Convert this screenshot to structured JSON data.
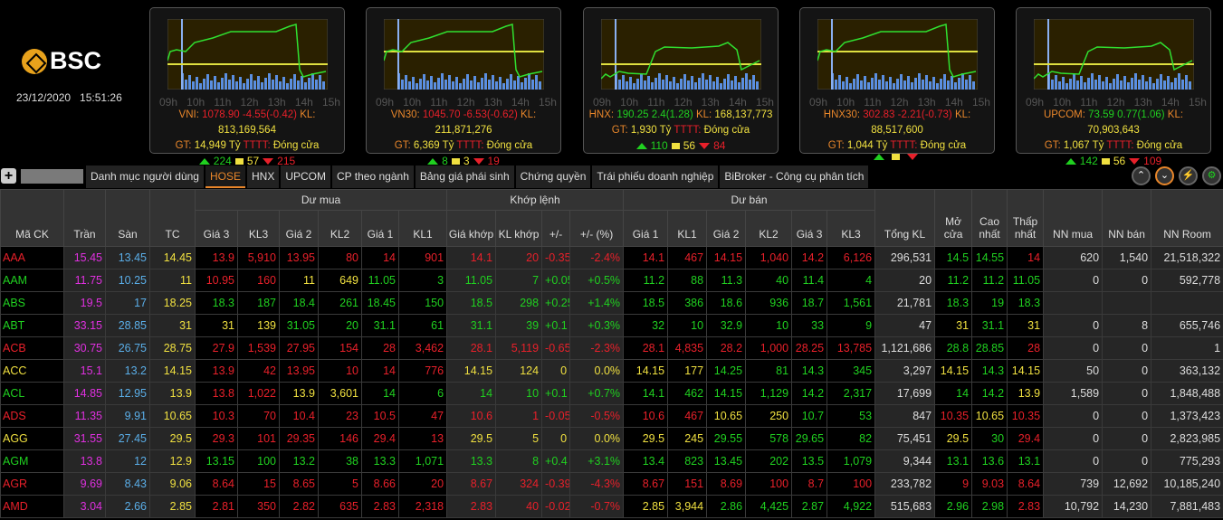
{
  "brand": "BSC",
  "datetime": "23/12/2020   15:51:26",
  "hours": [
    "09h",
    "10h",
    "11h",
    "12h",
    "13h",
    "14h",
    "15h"
  ],
  "indices": [
    {
      "name": "VNI:",
      "value": "1078.90",
      "change": "-4.55(-0.42)",
      "kl_label": "KL:",
      "kl": "813,169,564",
      "gt_label": "GT:",
      "gt": "14,949 Tỷ",
      "tttt_label": "TTTT:",
      "status": "Đóng cửa",
      "up": "224",
      "flat": "57",
      "down": "215",
      "trend": "down"
    },
    {
      "name": "VN30:",
      "value": "1045.70",
      "change": "-6.53(-0.62)",
      "kl_label": "KL:",
      "kl": "211,871,276",
      "gt_label": "GT:",
      "gt": "6,369 Tỷ",
      "tttt_label": "TTTT:",
      "status": "Đóng cửa",
      "up": "8",
      "flat": "3",
      "down": "19",
      "trend": "down"
    },
    {
      "name": "HNX:",
      "value": "190.25",
      "change": "2.4(1.28)",
      "kl_label": "KL:",
      "kl": "168,137,773",
      "gt_label": "GT:",
      "gt": "1,930 Tỷ",
      "tttt_label": "TTTT:",
      "status": "Đóng cửa",
      "up": "110",
      "flat": "56",
      "down": "84",
      "trend": "up"
    },
    {
      "name": "HNX30:",
      "value": "302.83",
      "change": "-2.21(-0.73)",
      "kl_label": "KL:",
      "kl": "88,517,600",
      "gt_label": "GT:",
      "gt": "1,044 Tỷ",
      "tttt_label": "TTTT:",
      "status": "Đóng cửa",
      "up": "",
      "flat": "",
      "down": "",
      "trend": "down"
    },
    {
      "name": "UPCOM:",
      "value": "73.59",
      "change": "0.77(1.06)",
      "kl_label": "KL:",
      "kl": "70,903,643",
      "gt_label": "GT:",
      "gt": "1,067 Tỷ",
      "tttt_label": "TTTT:",
      "status": "Đóng cửa",
      "up": "142",
      "flat": "56",
      "down": "109",
      "trend": "up"
    }
  ],
  "tabs": [
    "Danh mục người dùng",
    "HOSE",
    "HNX",
    "UPCOM",
    "CP theo ngành",
    "Bảng giá phái sinh",
    "Chứng quyền",
    "Trái phiếu doanh nghiệp",
    "BiBroker - Công cụ phân tích"
  ],
  "active_tab": "HOSE",
  "header": {
    "groups": {
      "buy": "Dư mua",
      "match": "Khớp lệnh",
      "sell": "Dư bán"
    },
    "cols": [
      "Mã CK",
      "Trần",
      "Sàn",
      "TC",
      "Giá 3",
      "KL3",
      "Giá 2",
      "KL2",
      "Giá 1",
      "KL1",
      "Giá khớp",
      "KL khớp",
      "+/-",
      "+/- (%)",
      "Giá 1",
      "KL1",
      "Giá 2",
      "KL2",
      "Giá 3",
      "KL3",
      "Tổng KL",
      "Mở cửa",
      "Cao nhất",
      "Thấp nhất",
      "NN mua",
      "NN bán",
      "NN Room"
    ]
  },
  "colors": {
    "ceiling": "#e030e0",
    "floor": "#5aaee8",
    "ref": "#f0e040",
    "up": "#20d020",
    "down": "#e8202a",
    "accent": "#e8862a"
  },
  "rows": [
    [
      "AAA",
      "15.45",
      "13.45",
      "14.45",
      "13.9",
      "5,910",
      "13.95",
      "80",
      "14",
      "901",
      "14.1",
      "20",
      "-0.35",
      "-2.4%",
      "14.1",
      "467",
      "14.15",
      "1,040",
      "14.2",
      "6,126",
      "296,531",
      "14.5",
      "14.55",
      "14",
      "620",
      "1,540",
      "21,518,322"
    ],
    [
      "AAM",
      "11.75",
      "10.25",
      "11",
      "10.95",
      "160",
      "11",
      "649",
      "11.05",
      "3",
      "11.05",
      "7",
      "+0.05",
      "+0.5%",
      "11.2",
      "88",
      "11.3",
      "40",
      "11.4",
      "4",
      "20",
      "11.2",
      "11.2",
      "11.05",
      "0",
      "0",
      "592,778"
    ],
    [
      "ABS",
      "19.5",
      "17",
      "18.25",
      "18.3",
      "187",
      "18.4",
      "261",
      "18.45",
      "150",
      "18.5",
      "298",
      "+0.25",
      "+1.4%",
      "18.5",
      "386",
      "18.6",
      "936",
      "18.7",
      "1,561",
      "21,781",
      "18.3",
      "19",
      "18.3",
      "",
      "",
      ""
    ],
    [
      "ABT",
      "33.15",
      "28.85",
      "31",
      "31",
      "139",
      "31.05",
      "20",
      "31.1",
      "61",
      "31.1",
      "39",
      "+0.1",
      "+0.3%",
      "32",
      "10",
      "32.9",
      "10",
      "33",
      "9",
      "47",
      "31",
      "31.1",
      "31",
      "0",
      "8",
      "655,746"
    ],
    [
      "ACB",
      "30.75",
      "26.75",
      "28.75",
      "27.9",
      "1,539",
      "27.95",
      "154",
      "28",
      "3,462",
      "28.1",
      "5,119",
      "-0.65",
      "-2.3%",
      "28.1",
      "4,835",
      "28.2",
      "1,000",
      "28.25",
      "13,785",
      "1,121,686",
      "28.8",
      "28.85",
      "28",
      "0",
      "0",
      "1"
    ],
    [
      "ACC",
      "15.1",
      "13.2",
      "14.15",
      "13.9",
      "42",
      "13.95",
      "10",
      "14",
      "776",
      "14.15",
      "124",
      "0",
      "0.0%",
      "14.15",
      "177",
      "14.25",
      "81",
      "14.3",
      "345",
      "3,297",
      "14.15",
      "14.3",
      "14.15",
      "50",
      "0",
      "363,132"
    ],
    [
      "ACL",
      "14.85",
      "12.95",
      "13.9",
      "13.8",
      "1,022",
      "13.9",
      "3,601",
      "14",
      "6",
      "14",
      "10",
      "+0.1",
      "+0.7%",
      "14.1",
      "462",
      "14.15",
      "1,129",
      "14.2",
      "2,317",
      "17,699",
      "14",
      "14.2",
      "13.9",
      "1,589",
      "0",
      "1,848,488"
    ],
    [
      "ADS",
      "11.35",
      "9.91",
      "10.65",
      "10.3",
      "70",
      "10.4",
      "23",
      "10.5",
      "47",
      "10.6",
      "1",
      "-0.05",
      "-0.5%",
      "10.6",
      "467",
      "10.65",
      "250",
      "10.7",
      "53",
      "847",
      "10.35",
      "10.65",
      "10.35",
      "0",
      "0",
      "1,373,423"
    ],
    [
      "AGG",
      "31.55",
      "27.45",
      "29.5",
      "29.3",
      "101",
      "29.35",
      "146",
      "29.4",
      "13",
      "29.5",
      "5",
      "0",
      "0.0%",
      "29.5",
      "245",
      "29.55",
      "578",
      "29.65",
      "82",
      "75,451",
      "29.5",
      "30",
      "29.4",
      "0",
      "0",
      "2,823,985"
    ],
    [
      "AGM",
      "13.8",
      "12",
      "12.9",
      "13.15",
      "100",
      "13.2",
      "38",
      "13.3",
      "1,071",
      "13.3",
      "8",
      "+0.4",
      "+3.1%",
      "13.4",
      "823",
      "13.45",
      "202",
      "13.5",
      "1,079",
      "9,344",
      "13.1",
      "13.6",
      "13.1",
      "0",
      "0",
      "775,293"
    ],
    [
      "AGR",
      "9.69",
      "8.43",
      "9.06",
      "8.64",
      "15",
      "8.65",
      "5",
      "8.66",
      "20",
      "8.67",
      "324",
      "-0.39",
      "-4.3%",
      "8.67",
      "151",
      "8.69",
      "100",
      "8.7",
      "100",
      "233,782",
      "9",
      "9.03",
      "8.64",
      "739",
      "12,692",
      "10,185,240"
    ],
    [
      "AMD",
      "3.04",
      "2.66",
      "2.85",
      "2.81",
      "350",
      "2.82",
      "635",
      "2.83",
      "2,318",
      "2.83",
      "40",
      "-0.02",
      "-0.7%",
      "2.85",
      "3,944",
      "2.86",
      "4,425",
      "2.87",
      "4,922",
      "515,683",
      "2.96",
      "2.98",
      "2.83",
      "10,792",
      "14,230",
      "7,881,483"
    ]
  ]
}
